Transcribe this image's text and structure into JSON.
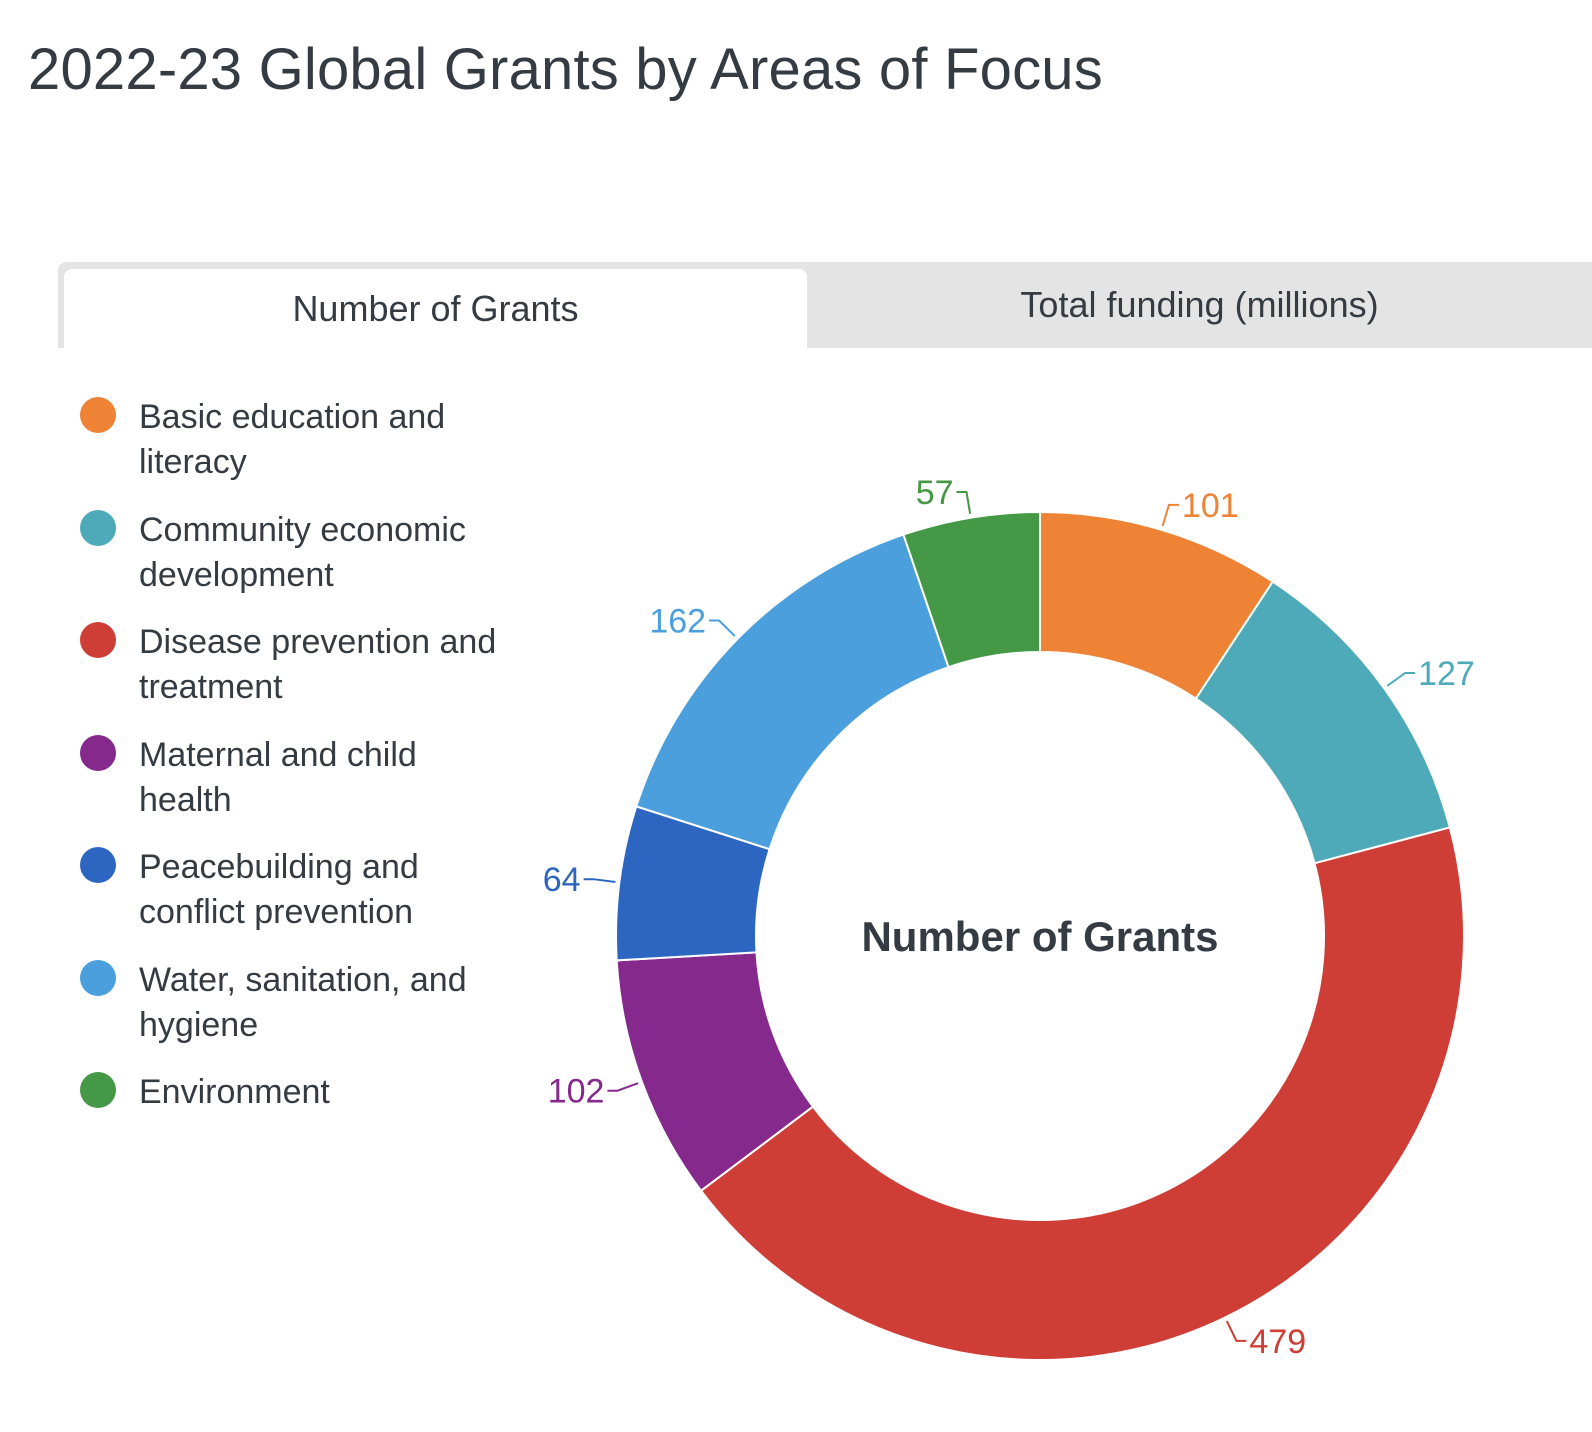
{
  "title": "2022-23 Global Grants by Areas of Focus",
  "tabs": [
    {
      "label": "Number of Grants",
      "active": true
    },
    {
      "label": "Total funding (millions)",
      "active": false
    }
  ],
  "chart_data": {
    "type": "pie",
    "donut": true,
    "center_label": "Number of Grants",
    "legend_placement": "left",
    "slices": [
      {
        "label": "Basic education and literacy",
        "value": 101,
        "color": "#ee8336"
      },
      {
        "label": "Community economic development",
        "value": 127,
        "color": "#4eaab8"
      },
      {
        "label": "Disease prevention and treatment",
        "value": 479,
        "color": "#cf3e36"
      },
      {
        "label": "Maternal and child health",
        "value": 102,
        "color": "#85298d"
      },
      {
        "label": "Peacebuilding and conflict prevention",
        "value": 64,
        "color": "#2d66c1"
      },
      {
        "label": "Water, sanitation, and hygiene",
        "value": 162,
        "color": "#4a9fdc"
      },
      {
        "label": "Environment",
        "value": 57,
        "color": "#449846"
      }
    ]
  }
}
